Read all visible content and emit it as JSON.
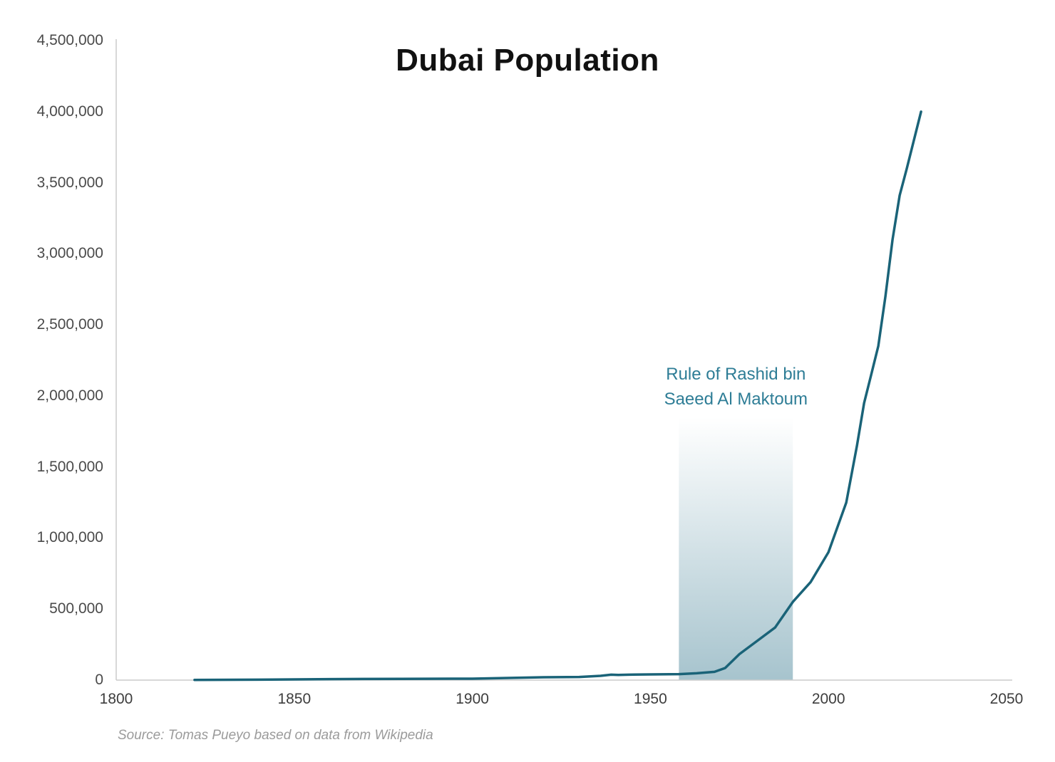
{
  "chart_data": {
    "type": "line",
    "title": "Dubai Population",
    "source": "Source: Tomas Pueyo based on data from Wikipedia",
    "xlim": [
      1800,
      2050
    ],
    "ylim": [
      0,
      4500000
    ],
    "x_ticks": [
      1800,
      1850,
      1900,
      1950,
      2000,
      2050
    ],
    "x_tick_labels": [
      "1800",
      "1850",
      "1900",
      "1950",
      "2000",
      "2050"
    ],
    "y_ticks": [
      0,
      500000,
      1000000,
      1500000,
      2000000,
      2500000,
      3000000,
      3500000,
      4000000,
      4500000
    ],
    "y_tick_labels": [
      "0",
      "500,000",
      "1,000,000",
      "1,500,000",
      "2,000,000",
      "2,500,000",
      "3,000,000",
      "3,500,000",
      "4,000,000",
      "4,500,000"
    ],
    "grid": false,
    "legend": "none",
    "line_color": "#1a6378",
    "axis_color": "#cccccc",
    "series": [
      {
        "name": "Dubai population",
        "points": [
          [
            1822,
            1200
          ],
          [
            1840,
            3000
          ],
          [
            1860,
            7000
          ],
          [
            1880,
            9000
          ],
          [
            1900,
            10000
          ],
          [
            1910,
            15000
          ],
          [
            1920,
            20000
          ],
          [
            1930,
            22000
          ],
          [
            1936,
            30000
          ],
          [
            1939,
            38000
          ],
          [
            1941,
            36000
          ],
          [
            1944,
            38000
          ],
          [
            1950,
            40000
          ],
          [
            1958,
            42000
          ],
          [
            1963,
            48000
          ],
          [
            1968,
            58000
          ],
          [
            1971,
            85000
          ],
          [
            1975,
            183000
          ],
          [
            1980,
            276000
          ],
          [
            1985,
            370000
          ],
          [
            1990,
            550000
          ],
          [
            1995,
            690000
          ],
          [
            2000,
            900000
          ],
          [
            2005,
            1250000
          ],
          [
            2008,
            1650000
          ],
          [
            2010,
            1950000
          ],
          [
            2012,
            2150000
          ],
          [
            2014,
            2350000
          ],
          [
            2016,
            2700000
          ],
          [
            2018,
            3100000
          ],
          [
            2020,
            3411000
          ],
          [
            2022,
            3600000
          ],
          [
            2024,
            3800000
          ],
          [
            2026,
            4000000
          ]
        ]
      }
    ],
    "region": {
      "start_year": 1958,
      "end_year": 1990,
      "top_value": 1850000,
      "fill_color": "#5e93a5",
      "label_line1": "Rule of Rashid bin",
      "label_line2": "Saeed Al Maktoum",
      "label_color": "#2e7d96"
    }
  }
}
